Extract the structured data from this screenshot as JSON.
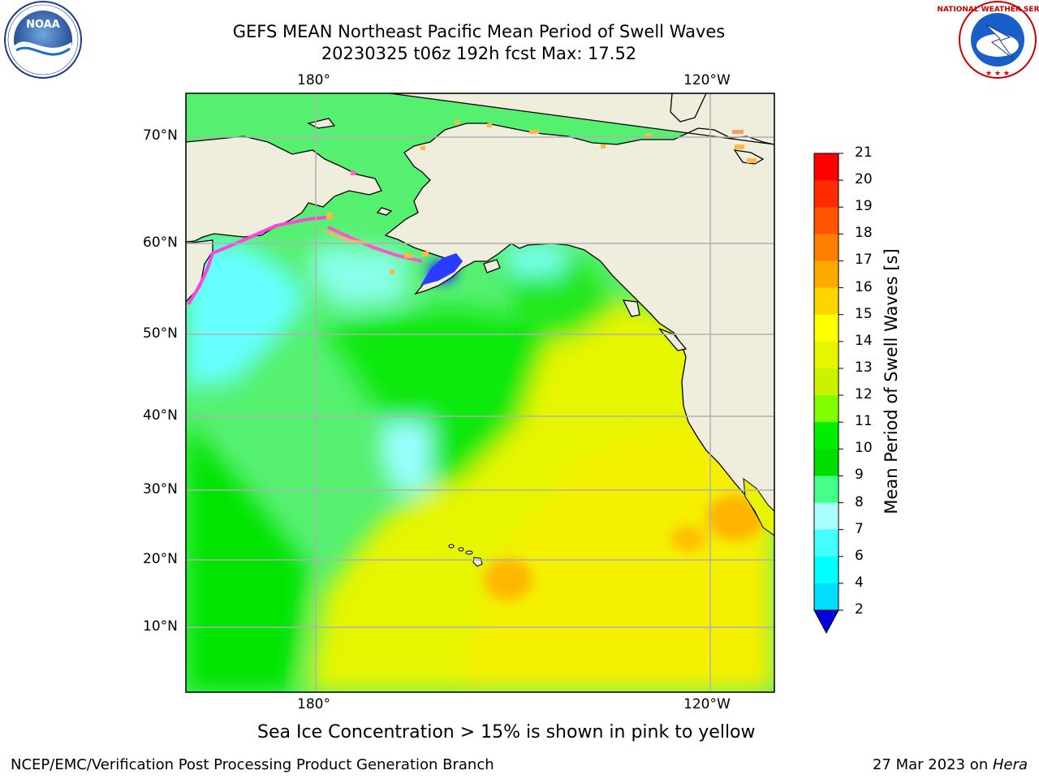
{
  "title": {
    "line1": "GEFS MEAN Northeast Pacific Mean Period of Swell Waves",
    "line2": "20230325 t06z 192h fcst   Max: 17.52"
  },
  "map": {
    "lon_labels_top": [
      "180°",
      "120°W"
    ],
    "lon_labels_bottom": [
      "180°",
      "120°W"
    ],
    "lat_labels": [
      "70°N",
      "60°N",
      "50°N",
      "40°N",
      "30°N",
      "20°N",
      "10°N"
    ],
    "land_color": "#efeddc",
    "gridline_color": "#b0b0b0",
    "features": [
      "alaska",
      "aleutian-islands",
      "canada",
      "us-west-coast",
      "baja-california",
      "hawaiian-islands",
      "russia-chukotka"
    ]
  },
  "colorbar": {
    "label": "Mean Period of Swell Waves [s]",
    "ticks": [
      "21",
      "20",
      "19",
      "18",
      "17",
      "16",
      "15",
      "14",
      "13",
      "12",
      "11",
      "10",
      "9",
      "8",
      "7",
      "6",
      "4",
      "2"
    ],
    "colors": [
      "#ff0000",
      "#ff2a00",
      "#ff5500",
      "#ff8000",
      "#ffaa00",
      "#ffd500",
      "#ffff00",
      "#e8f500",
      "#cbf200",
      "#7fff00",
      "#00ee00",
      "#00dd00",
      "#44ff88",
      "#aaffff",
      "#44ffff",
      "#00ffff",
      "#00ddff",
      "#0088ff",
      "#0000ff"
    ],
    "extend_min_color": "#0000dd"
  },
  "note": "Sea Ice Concentration > 15% is shown in pink to yellow",
  "footer": {
    "left": "NCEP/EMC/Verification Post Processing Product Generation Branch",
    "date": "27 Mar 2023 on ",
    "machine": "Hera"
  },
  "logos": {
    "noaa": "NOAA",
    "nws": "NATIONAL WEATHER SERVICE"
  }
}
